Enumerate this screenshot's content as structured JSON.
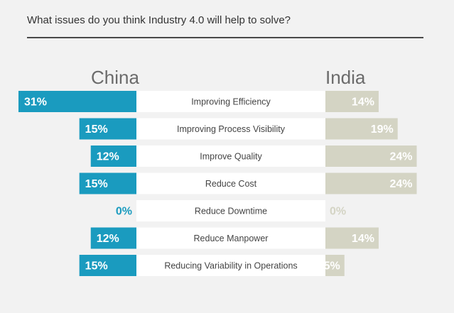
{
  "title": "What issues do you think Industry 4.0 will help to solve?",
  "colors": {
    "china": "#1a9bbf",
    "india": "#d4d4c4",
    "label_band": "#ffffff"
  },
  "chart_data": {
    "type": "bar",
    "orientation": "horizontal-butterfly",
    "title": "What issues do you think Industry 4.0 will help to solve?",
    "categories": [
      "Improving Efficiency",
      "Improving Process Visibility",
      "Improve Quality",
      "Reduce Cost",
      "Reduce Downtime",
      "Reduce Manpower",
      "Reducing Variability in Operations"
    ],
    "series": [
      {
        "name": "China",
        "values": [
          31,
          15,
          12,
          15,
          0,
          12,
          15
        ],
        "labels": [
          "31%",
          "15%",
          "12%",
          "15%",
          "0%",
          "12%",
          "15%"
        ]
      },
      {
        "name": "India",
        "values": [
          14,
          19,
          24,
          24,
          0,
          14,
          5
        ],
        "labels": [
          "14%",
          "19%",
          "24%",
          "24%",
          "0%",
          "14%",
          "5%"
        ]
      }
    ],
    "unit": "%",
    "xlim": [
      0,
      31
    ]
  }
}
